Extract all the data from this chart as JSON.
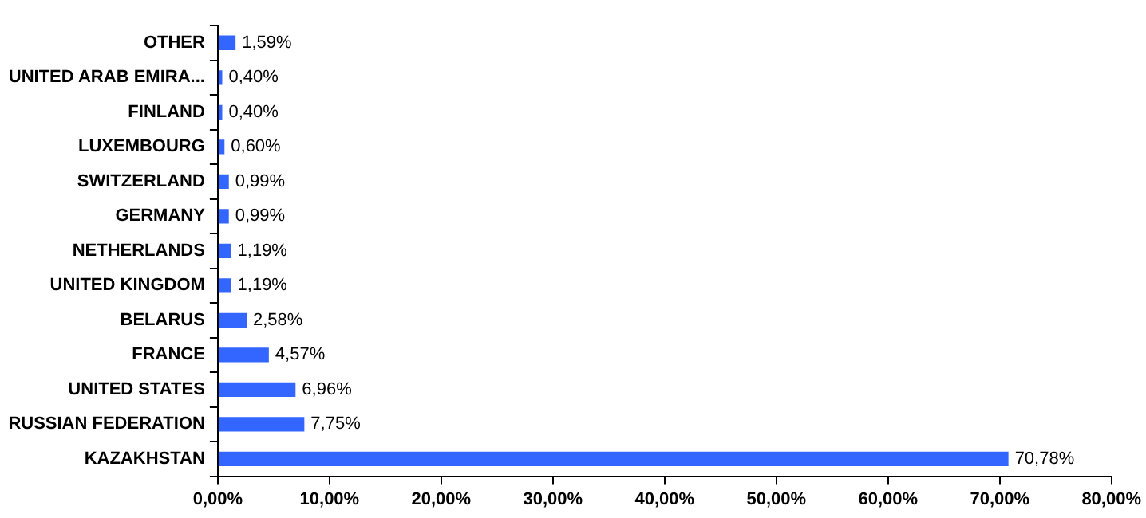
{
  "chart_data": {
    "type": "bar",
    "orientation": "horizontal",
    "categories": [
      "OTHER",
      "UNITED ARAB EMIRA...",
      "FINLAND",
      "LUXEMBOURG",
      "SWITZERLAND",
      "GERMANY",
      "NETHERLANDS",
      "UNITED KINGDOM",
      "BELARUS",
      "FRANCE",
      "UNITED STATES",
      "RUSSIAN FEDERATION",
      "KAZAKHSTAN"
    ],
    "values": [
      1.59,
      0.4,
      0.4,
      0.6,
      0.99,
      0.99,
      1.19,
      1.19,
      2.58,
      4.57,
      6.96,
      7.75,
      70.78
    ],
    "value_labels": [
      "1,59%",
      "0,40%",
      "0,40%",
      "0,60%",
      "0,99%",
      "0,99%",
      "1,19%",
      "1,19%",
      "2,58%",
      "4,57%",
      "6,96%",
      "7,75%",
      "70,78%"
    ],
    "color": "#3366ff",
    "xlim": [
      0,
      80
    ],
    "xticks": [
      {
        "value": 0,
        "label": "0,00%"
      },
      {
        "value": 10,
        "label": "10,00%"
      },
      {
        "value": 20,
        "label": "20,00%"
      },
      {
        "value": 30,
        "label": "30,00%"
      },
      {
        "value": 40,
        "label": "40,00%"
      },
      {
        "value": 50,
        "label": "50,00%"
      },
      {
        "value": 60,
        "label": "60,00%"
      },
      {
        "value": 70,
        "label": "70,00%"
      },
      {
        "value": 80,
        "label": "80,00%"
      }
    ],
    "grid": false
  }
}
